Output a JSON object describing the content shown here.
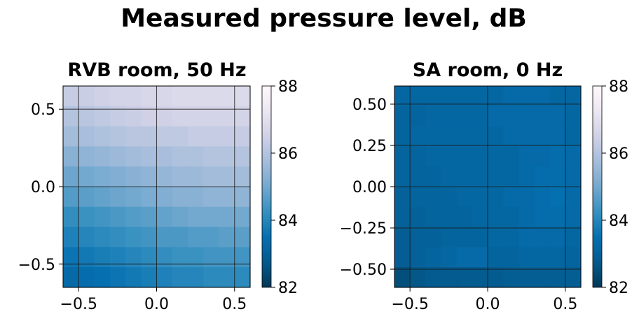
{
  "title": "Measured pressure level, dB",
  "colormap": {
    "name": "PuBu_r",
    "stops": [
      "#023858",
      "#045a8d",
      "#0570b0",
      "#3690c0",
      "#74a9cf",
      "#a6bddb",
      "#d0d1e6",
      "#ece7f2",
      "#fff7fb"
    ]
  },
  "chart_data": [
    {
      "type": "heatmap",
      "title": "RVB room, 50 Hz",
      "xlim": [
        -0.6,
        0.6
      ],
      "ylim": [
        -0.65,
        0.65
      ],
      "x_ticks": [
        "−0.5",
        "0.0",
        "0.5"
      ],
      "y_ticks": [
        "0.5",
        "0.0",
        "−0.5"
      ],
      "clim": [
        82,
        88
      ],
      "colorbar_ticks": [
        "88",
        "86",
        "84",
        "82"
      ],
      "grid": true,
      "values": [
        [
          86.3,
          86.4,
          86.5,
          86.6,
          86.6,
          86.7,
          86.7,
          86.8,
          86.8,
          86.8,
          86.8,
          86.8
        ],
        [
          86.0,
          86.1,
          86.2,
          86.3,
          86.4,
          86.5,
          86.5,
          86.6,
          86.6,
          86.6,
          86.6,
          86.6
        ],
        [
          85.7,
          85.8,
          85.9,
          86.0,
          86.1,
          86.1,
          86.2,
          86.2,
          86.3,
          86.3,
          86.3,
          86.3
        ],
        [
          85.3,
          85.4,
          85.5,
          85.6,
          85.7,
          85.8,
          85.8,
          85.9,
          85.9,
          86.0,
          86.0,
          86.0
        ],
        [
          84.9,
          85.0,
          85.1,
          85.2,
          85.3,
          85.4,
          85.5,
          85.6,
          85.6,
          85.7,
          85.7,
          85.7
        ],
        [
          84.6,
          84.7,
          84.8,
          84.9,
          85.0,
          85.1,
          85.2,
          85.3,
          85.3,
          85.4,
          85.4,
          85.4
        ],
        [
          84.2,
          84.3,
          84.4,
          84.5,
          84.6,
          84.7,
          84.8,
          84.9,
          85.0,
          85.0,
          85.0,
          85.0
        ],
        [
          83.9,
          84.0,
          84.1,
          84.2,
          84.3,
          84.4,
          84.5,
          84.5,
          84.6,
          84.6,
          84.7,
          84.7
        ],
        [
          83.6,
          83.7,
          83.8,
          83.9,
          84.0,
          84.1,
          84.2,
          84.3,
          84.3,
          84.4,
          84.4,
          84.4
        ],
        [
          83.3,
          83.4,
          83.5,
          83.6,
          83.7,
          83.8,
          83.9,
          84.0,
          84.0,
          84.1,
          84.1,
          84.1
        ]
      ]
    },
    {
      "type": "heatmap",
      "title": "SA room, 0 Hz",
      "xlim": [
        -0.6,
        0.6
      ],
      "ylim": [
        -0.61,
        0.61
      ],
      "x_ticks": [
        "−0.5",
        "0.0",
        "0.5"
      ],
      "y_ticks": [
        "0.50",
        "0.25",
        "0.00",
        "−0.25",
        "−0.50"
      ],
      "clim": [
        82,
        88
      ],
      "colorbar_ticks": [
        "88",
        "86",
        "84",
        "82"
      ],
      "grid": true,
      "values": [
        [
          83.2,
          83.2,
          83.2,
          83.2,
          83.2,
          83.2,
          83.2,
          83.3,
          83.3,
          83.3,
          83.2,
          83.2
        ],
        [
          83.1,
          83.1,
          83.2,
          83.2,
          83.2,
          83.2,
          83.3,
          83.3,
          83.3,
          83.3,
          83.3,
          83.2
        ],
        [
          83.1,
          83.2,
          83.2,
          83.2,
          83.2,
          83.2,
          83.2,
          83.3,
          83.3,
          83.3,
          83.3,
          83.2
        ],
        [
          83.1,
          83.1,
          83.2,
          83.2,
          83.2,
          83.2,
          83.2,
          83.2,
          83.3,
          83.3,
          83.4,
          83.3
        ],
        [
          83.1,
          83.1,
          83.1,
          83.2,
          83.2,
          83.2,
          83.2,
          83.2,
          83.3,
          83.4,
          83.4,
          83.3
        ],
        [
          83.0,
          83.1,
          83.1,
          83.1,
          83.2,
          83.2,
          83.2,
          83.3,
          83.3,
          83.4,
          83.5,
          83.3
        ],
        [
          83.0,
          83.0,
          83.1,
          83.1,
          83.1,
          83.2,
          83.2,
          83.2,
          83.3,
          83.4,
          83.4,
          83.3
        ],
        [
          82.9,
          83.0,
          83.0,
          83.1,
          83.1,
          83.1,
          83.2,
          83.2,
          83.3,
          83.3,
          83.3,
          83.2
        ],
        [
          82.9,
          83.0,
          83.1,
          83.2,
          83.3,
          83.3,
          83.1,
          83.1,
          83.2,
          83.2,
          83.2,
          83.1
        ],
        [
          82.5,
          82.7,
          82.8,
          82.8,
          82.8,
          82.8,
          82.8,
          82.9,
          82.9,
          82.9,
          82.9,
          82.9
        ]
      ]
    }
  ]
}
